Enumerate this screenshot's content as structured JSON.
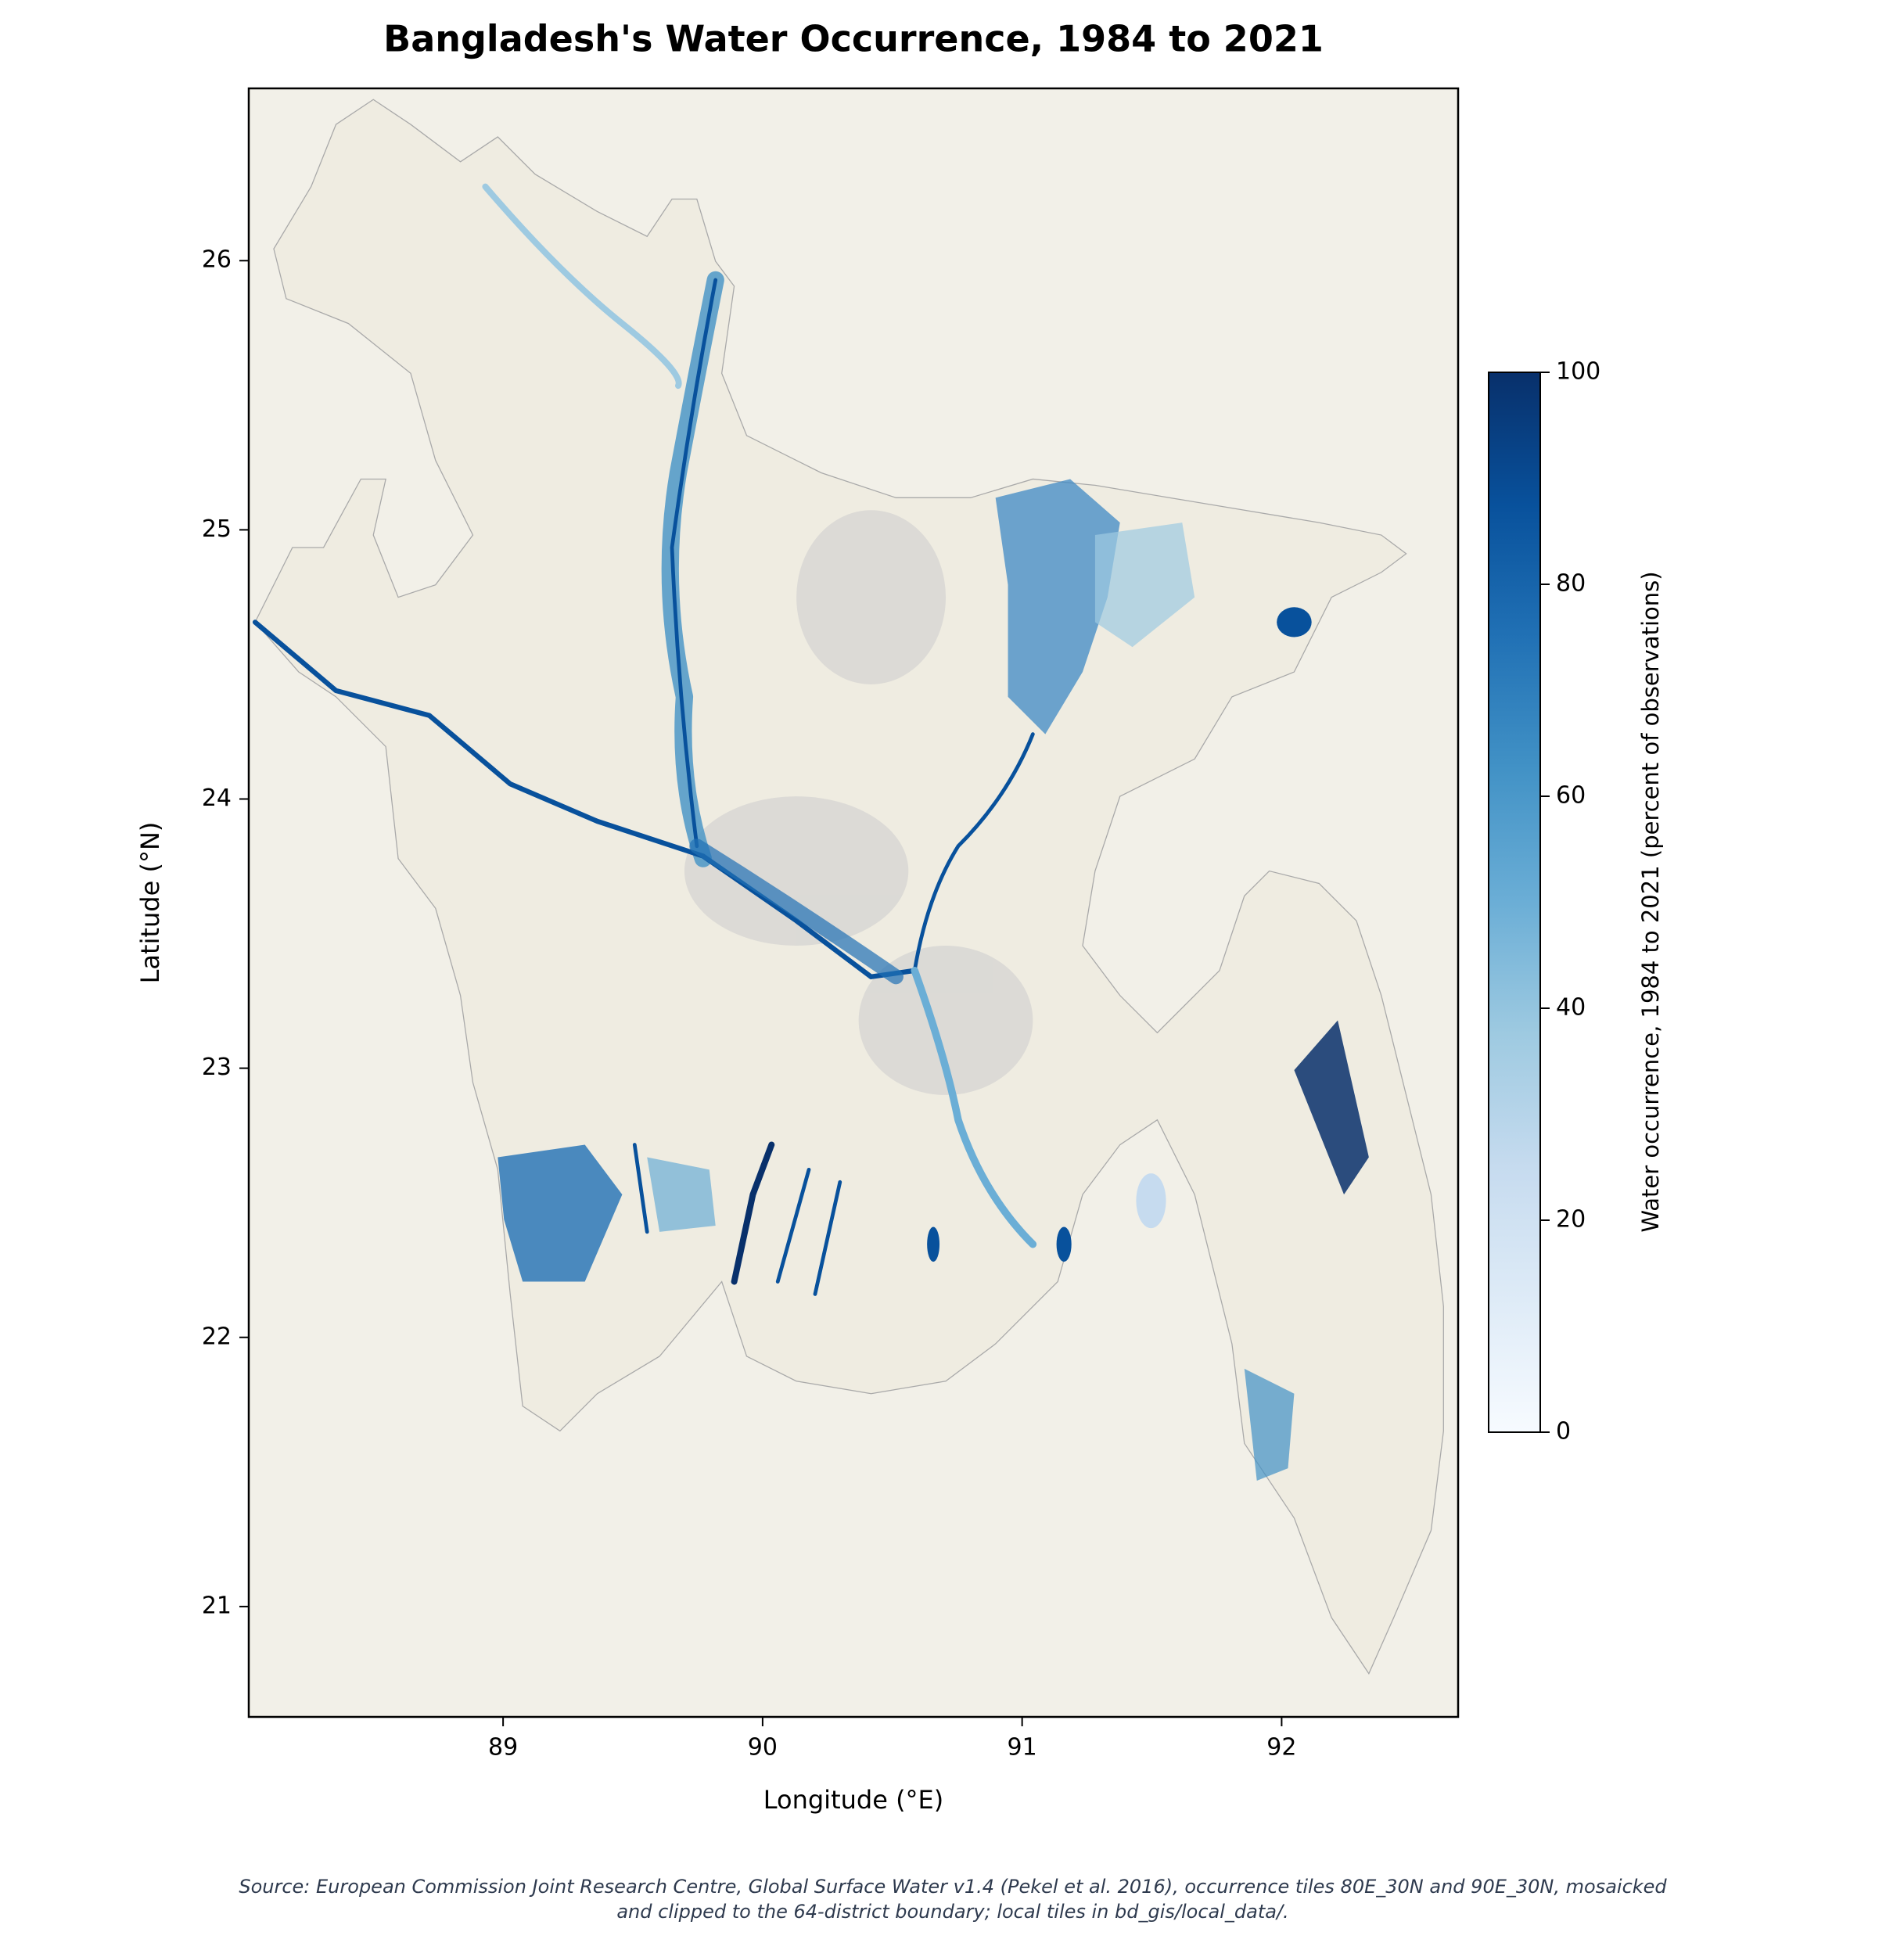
{
  "chart_data": {
    "type": "map",
    "title": "Bangladesh's Water Occurrence, 1984 to 2021",
    "xlabel": "Longitude (°E)",
    "ylabel": "Latitude (°N)",
    "xlim": [
      88.02,
      92.68
    ],
    "ylim": [
      20.59,
      26.64
    ],
    "xticks": [
      89,
      90,
      91,
      92
    ],
    "yticks": [
      21,
      22,
      23,
      24,
      25,
      26
    ],
    "colorbar": {
      "label": "Water occurrence, 1984 to 2021 (percent of observations)",
      "lim": [
        0,
        100
      ],
      "ticks": [
        0,
        20,
        40,
        60,
        80,
        100
      ],
      "cmap": "Blues"
    },
    "source": [
      "Source: European Commission Joint Research Centre, Global Surface Water v1.4 (Pekel et al. 2016), occurrence tiles 80E_30N and 90E_30N, mosaicked",
      "and clipped to the 64-district boundary; local tiles in bd_gis/local_data/."
    ]
  }
}
